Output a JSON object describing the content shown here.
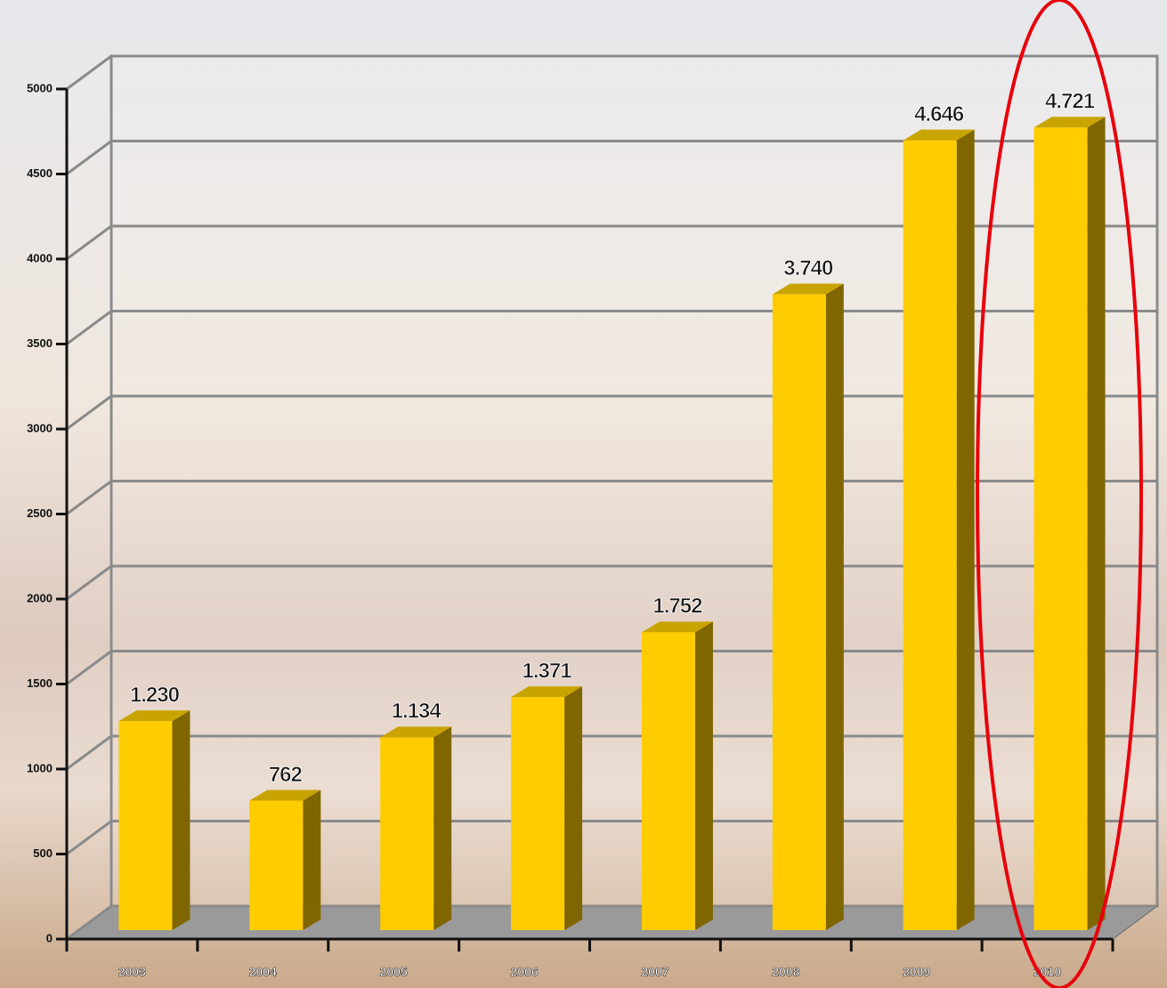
{
  "chart_data": {
    "type": "bar3d",
    "categories": [
      "2003",
      "2004",
      "2005",
      "2006",
      "2007",
      "2008",
      "2009",
      "2010"
    ],
    "values": [
      1230,
      762,
      1134,
      1371,
      1752,
      3740,
      4646,
      4721
    ],
    "value_labels": [
      "1.230",
      "762",
      "1.134",
      "1.371",
      "1.752",
      "3.740",
      "4.646",
      "4.721"
    ],
    "color": "#ffcc00",
    "ylim": [
      0,
      5000
    ],
    "yticks": [
      0,
      500,
      1000,
      1500,
      2000,
      2500,
      3000,
      3500,
      4000,
      4500,
      5000
    ],
    "grid": true
  }
}
